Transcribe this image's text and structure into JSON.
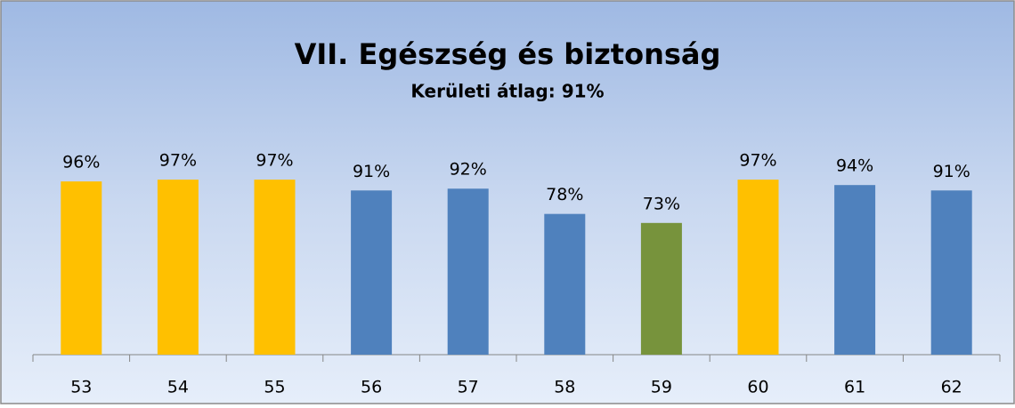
{
  "chart_data": {
    "type": "bar",
    "title": "VII. Egészség és biztonság",
    "subtitle": "Kerületi átlag: 91%",
    "categories": [
      "53",
      "54",
      "55",
      "56",
      "57",
      "58",
      "59",
      "60",
      "61",
      "62"
    ],
    "values": [
      96,
      97,
      97,
      91,
      92,
      78,
      73,
      97,
      94,
      91
    ],
    "value_labels": [
      "96%",
      "97%",
      "97%",
      "91%",
      "92%",
      "78%",
      "73%",
      "97%",
      "94%",
      "91%"
    ],
    "colors": [
      "#ffc000",
      "#ffc000",
      "#ffc000",
      "#4f81bd",
      "#4f81bd",
      "#4f81bd",
      "#77933c",
      "#ffc000",
      "#4f81bd",
      "#4f81bd"
    ],
    "ylim": [
      0,
      100
    ]
  }
}
